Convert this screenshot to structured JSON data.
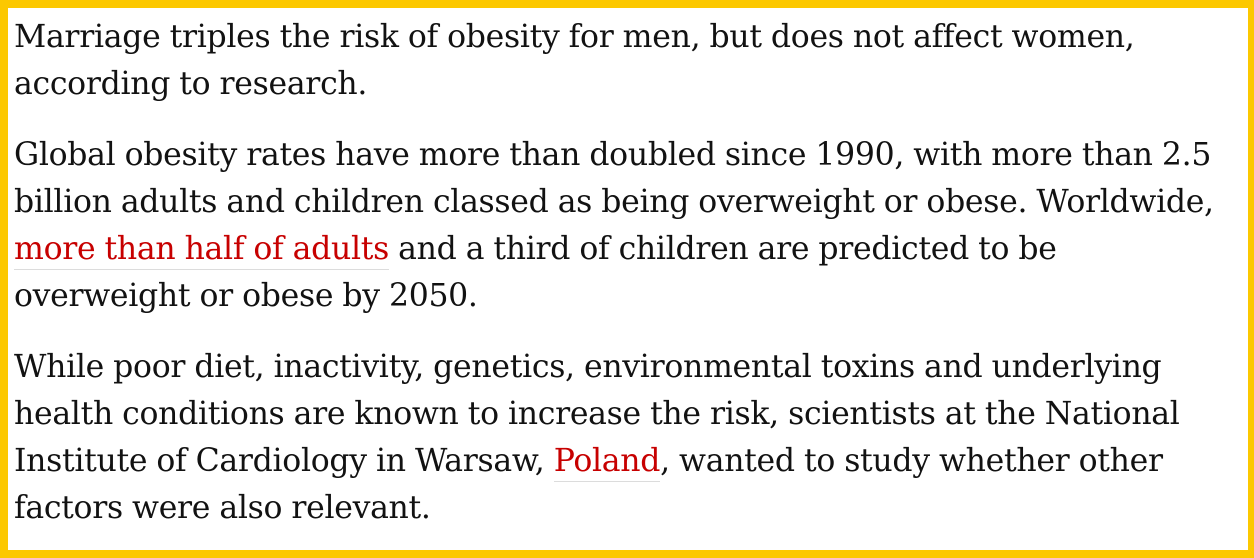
{
  "article": {
    "paragraphs": [
      {
        "lines": [
          "Marriage triples the risk of obesity for men, but does not affect women,",
          "according to research."
        ]
      },
      {
        "lines": [
          "Global obesity rates have more than doubled since 1990, with more than 2.5",
          "billion adults and children classed as being overweight or obese. Worldwide,"
        ],
        "line3_link": "more than half of adults",
        "line3_rest": " and a third of children are predicted to be",
        "line4": "overweight or obese by 2050."
      },
      {
        "lines": [
          "While poor diet, inactivity, genetics, environmental toxins and underlying",
          "health conditions are known to increase the risk, scientists at the National"
        ],
        "line3_before": "Institute of Cardiology in Warsaw, ",
        "line3_link": "Poland",
        "line3_after": ", wanted to study whether other",
        "line4": "factors were also relevant."
      }
    ]
  },
  "colors": {
    "frame_border": "#fcc800",
    "link": "#c70000",
    "text": "#121212",
    "background": "#ffffff"
  }
}
